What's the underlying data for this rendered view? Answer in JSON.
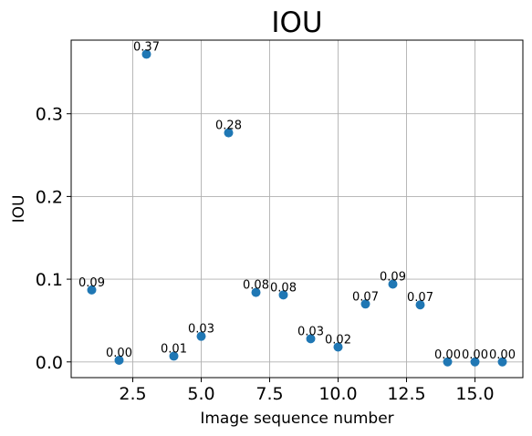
{
  "chart_data": {
    "type": "scatter",
    "title": "IOU",
    "xlabel": "Image sequence number",
    "ylabel": "IOU",
    "xlim": [
      0.25,
      16.75
    ],
    "ylim": [
      -0.019,
      0.389
    ],
    "xticks": [
      2.5,
      5.0,
      7.5,
      10.0,
      12.5,
      15.0
    ],
    "xtick_labels": [
      "2.5",
      "5.0",
      "7.5",
      "10.0",
      "12.5",
      "15.0"
    ],
    "yticks": [
      0.0,
      0.1,
      0.2,
      0.3
    ],
    "ytick_labels": [
      "0.0",
      "0.1",
      "0.2",
      "0.3"
    ],
    "grid": true,
    "marker_color": "#1f77b4",
    "points": [
      {
        "x": 1,
        "y": 0.087,
        "label": "0.09"
      },
      {
        "x": 2,
        "y": 0.002,
        "label": "0.00"
      },
      {
        "x": 3,
        "y": 0.372,
        "label": "0.37"
      },
      {
        "x": 4,
        "y": 0.007,
        "label": "0.01"
      },
      {
        "x": 5,
        "y": 0.031,
        "label": "0.03"
      },
      {
        "x": 6,
        "y": 0.277,
        "label": "0.28"
      },
      {
        "x": 7,
        "y": 0.084,
        "label": "0.08"
      },
      {
        "x": 8,
        "y": 0.081,
        "label": "0.08"
      },
      {
        "x": 9,
        "y": 0.028,
        "label": "0.03"
      },
      {
        "x": 10,
        "y": 0.018,
        "label": "0.02"
      },
      {
        "x": 11,
        "y": 0.07,
        "label": "0.07"
      },
      {
        "x": 12,
        "y": 0.094,
        "label": "0.09"
      },
      {
        "x": 13,
        "y": 0.069,
        "label": "0.07"
      },
      {
        "x": 14,
        "y": 0.0,
        "label": "0.00"
      },
      {
        "x": 15,
        "y": 0.0,
        "label": "0.00"
      },
      {
        "x": 16,
        "y": 0.0,
        "label": "0.00"
      }
    ]
  }
}
